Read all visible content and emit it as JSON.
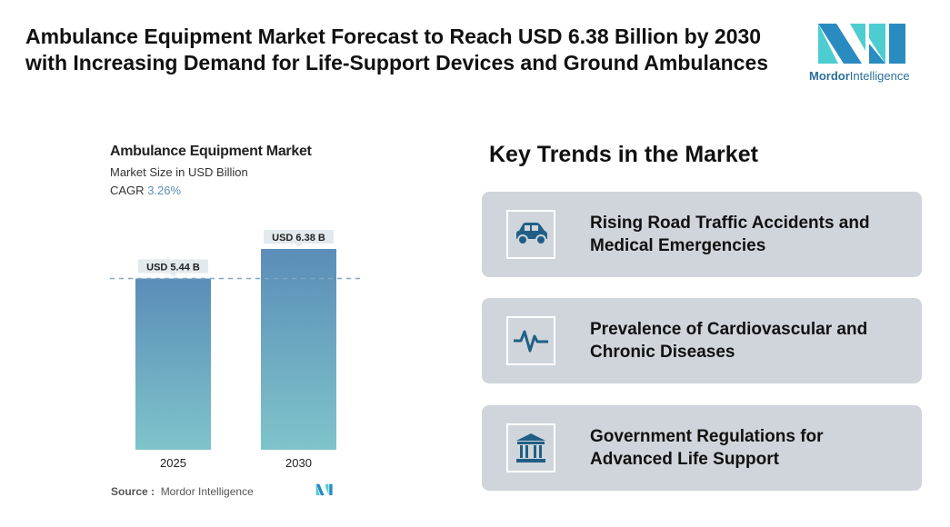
{
  "title": "Ambulance Equipment Market Forecast to Reach USD 6.38 Billion by 2030 with Increasing Demand for Life-Support Devices and Ground Ambulances",
  "logo": {
    "part1": "Mordor",
    "part2": "Intelligence"
  },
  "chart_data": {
    "type": "bar",
    "title": "Ambulance Equipment Market",
    "subtitle": "Market Size in USD Billion",
    "cagr_label": "CAGR",
    "cagr_value": "3.26%",
    "categories": [
      "2025",
      "2030"
    ],
    "values": [
      5.44,
      6.38
    ],
    "data_labels": [
      "USD 5.44 B",
      "USD 6.38 B"
    ],
    "ylim": [
      0,
      6.38
    ],
    "colors": {
      "top": "#5b8db8",
      "bottom": "#7fc4ca"
    }
  },
  "source": {
    "label": "Source :",
    "value": "Mordor Intelligence"
  },
  "trends": {
    "title": "Key Trends in the Market",
    "items": [
      {
        "icon": "car-icon",
        "text": "Rising Road Traffic Accidents and Medical Emergencies"
      },
      {
        "icon": "heartbeat-icon",
        "text": "Prevalence of Cardiovascular and Chronic Diseases"
      },
      {
        "icon": "government-building-icon",
        "text": "Government Regulations for Advanced Life Support"
      }
    ]
  }
}
